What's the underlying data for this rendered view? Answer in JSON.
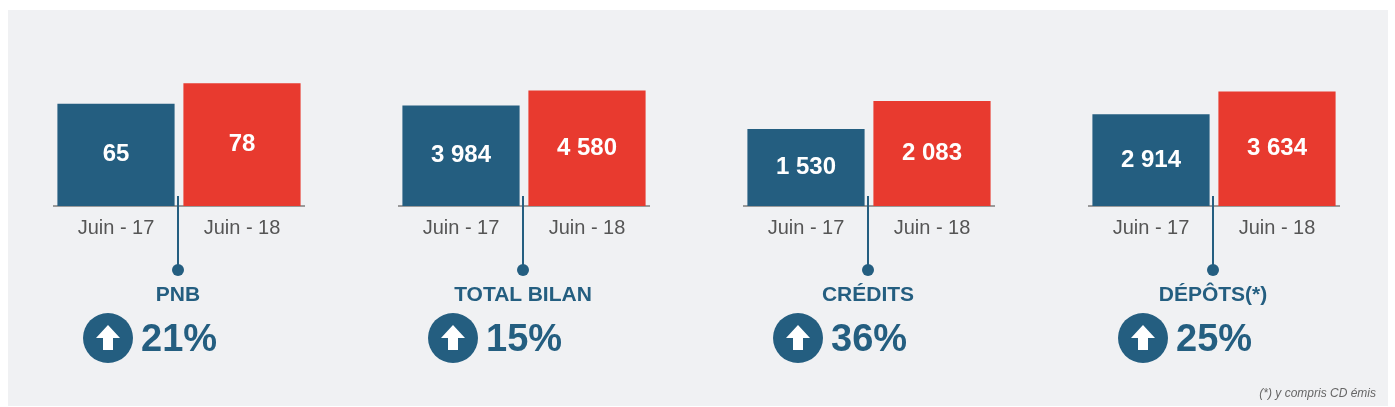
{
  "chart_data": [
    {
      "type": "bar",
      "title": "PNB",
      "categories": [
        "Juin - 17",
        "Juin - 18"
      ],
      "values": [
        65,
        78
      ],
      "value_labels": [
        "65",
        "78"
      ],
      "colors": [
        "#245e80",
        "#e83a2f"
      ],
      "grid": false,
      "legend": false,
      "annotations": [
        "21%"
      ]
    },
    {
      "type": "bar",
      "title": "TOTAL BILAN",
      "categories": [
        "Juin - 17",
        "Juin - 18"
      ],
      "values": [
        3984,
        4580
      ],
      "value_labels": [
        "3 984",
        "4 580"
      ],
      "colors": [
        "#245e80",
        "#e83a2f"
      ],
      "grid": false,
      "legend": false,
      "annotations": [
        "15%"
      ]
    },
    {
      "type": "bar",
      "title": "CRÉDITS",
      "categories": [
        "Juin - 17",
        "Juin - 18"
      ],
      "values": [
        1530,
        2083
      ],
      "value_labels": [
        "1 530",
        "2 083"
      ],
      "colors": [
        "#245e80",
        "#e83a2f"
      ],
      "grid": false,
      "legend": false,
      "annotations": [
        "36%"
      ]
    },
    {
      "type": "bar",
      "title": "DÉPÔTS(*)",
      "categories": [
        "Juin - 17",
        "Juin - 18"
      ],
      "values": [
        2914,
        3634
      ],
      "value_labels": [
        "2 914",
        "3 634"
      ],
      "colors": [
        "#245e80",
        "#e83a2f"
      ],
      "grid": false,
      "legend": false,
      "annotations": [
        "25%",
        "(*) y compris CD émis"
      ]
    }
  ]
}
